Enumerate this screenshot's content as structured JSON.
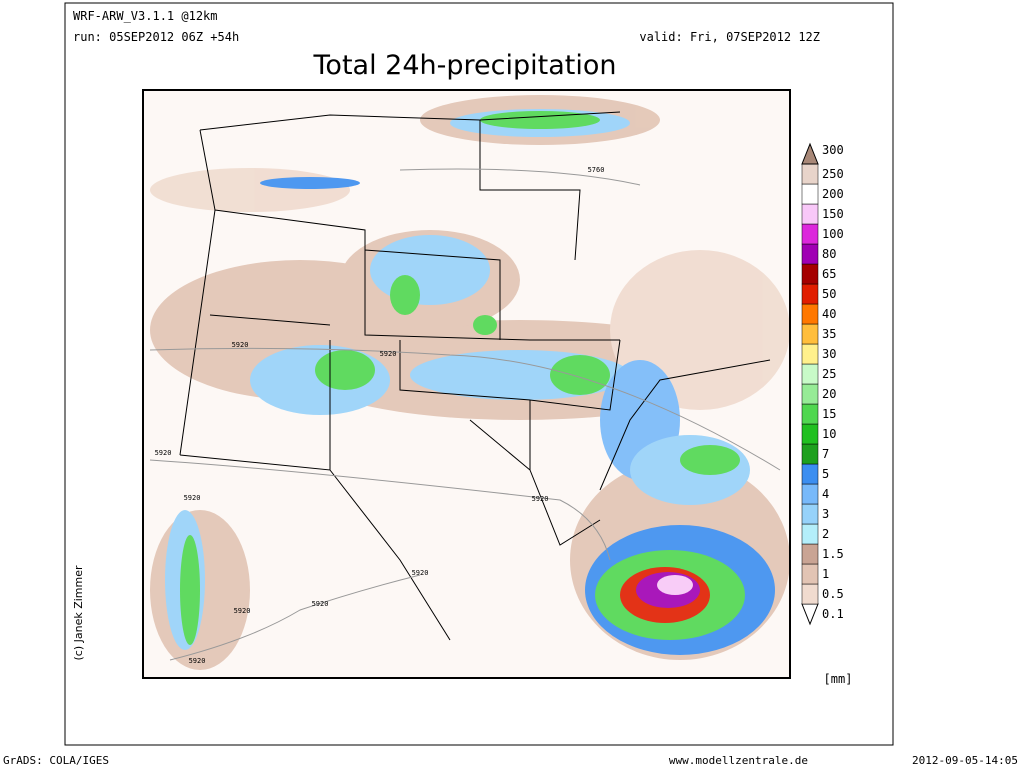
{
  "header": {
    "model": "WRF-ARW_V3.1.1 @12km",
    "run": "run: 05SEP2012 06Z +54h",
    "valid": "valid: Fri, 07SEP2012 12Z",
    "title": "Total 24h-precipitation"
  },
  "legend": {
    "unit": "[mm]",
    "levels": [
      {
        "label": "0.1",
        "color": "#fbf1ea"
      },
      {
        "label": "0.5",
        "color": "#f0dbcf"
      },
      {
        "label": "1",
        "color": "#e2c4b4"
      },
      {
        "label": "1.5",
        "color": "#c9a494"
      },
      {
        "label": "2",
        "color": "#b4eefa"
      },
      {
        "label": "3",
        "color": "#96d2fa"
      },
      {
        "label": "4",
        "color": "#78b9fa"
      },
      {
        "label": "5",
        "color": "#3c8ef0"
      },
      {
        "label": "7",
        "color": "#1ea01e"
      },
      {
        "label": "10",
        "color": "#20c020"
      },
      {
        "label": "15",
        "color": "#50d750"
      },
      {
        "label": "20",
        "color": "#96eb96"
      },
      {
        "label": "25",
        "color": "#c8fac8"
      },
      {
        "label": "30",
        "color": "#fff08c"
      },
      {
        "label": "35",
        "color": "#ffbe3c"
      },
      {
        "label": "40",
        "color": "#ff7800"
      },
      {
        "label": "50",
        "color": "#e11e00"
      },
      {
        "label": "65",
        "color": "#a50000"
      },
      {
        "label": "80",
        "color": "#a000b4"
      },
      {
        "label": "100",
        "color": "#dc28dc"
      },
      {
        "label": "150",
        "color": "#f8c8f8"
      },
      {
        "label": "200",
        "color": "#ffffff"
      },
      {
        "label": "250",
        "color": "#e8d4ca"
      },
      {
        "label": "300",
        "color": "#a88878"
      }
    ]
  },
  "map_labels": [
    "5760",
    "5920",
    "5920",
    "5920",
    "5920",
    "5920",
    "5920",
    "5920",
    "5920",
    "5920"
  ],
  "credit": "(c) Janek Zimmer",
  "footer": {
    "left": "GrADS: COLA/IGES",
    "center": "www.modellzentrale.de",
    "right": "2012-09-05-14:05"
  }
}
